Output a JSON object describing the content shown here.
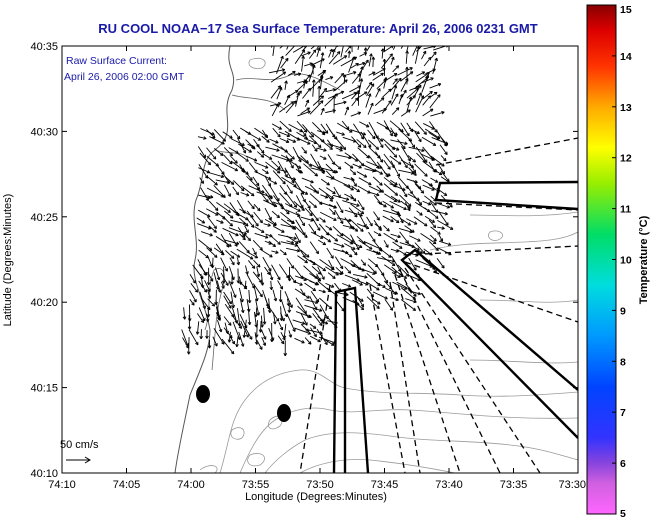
{
  "title": "RU COOL  NOAA−17  Sea Surface Temperature:  April 26, 2006 0231 GMT",
  "annotation": {
    "line1": "Raw Surface Current:",
    "line2": "April 26, 2006 02:00 GMT"
  },
  "scale_label": "50 cm/s",
  "axes": {
    "xlabel": "Longitude (Degrees:Minutes)",
    "ylabel": "Latitude (Degrees:Minutes)",
    "xticks": [
      "74:10",
      "74:05",
      "74:00",
      "73:55",
      "73:50",
      "73:45",
      "73:40",
      "73:35",
      "73:30"
    ],
    "yticks": [
      "40:35",
      "40:30",
      "40:25",
      "40:20",
      "40:15",
      "40:10"
    ]
  },
  "colorbar": {
    "label": "Temperature (°C)",
    "ticks": [
      "15",
      "14",
      "13",
      "12",
      "11",
      "10",
      "9",
      "8",
      "7",
      "6",
      "5"
    ],
    "range": [
      5,
      15
    ]
  },
  "colors": {
    "title": "#1a1aa8",
    "land_outline": "#555555",
    "contour": "#9a9a9a",
    "vector": "#000000"
  }
}
